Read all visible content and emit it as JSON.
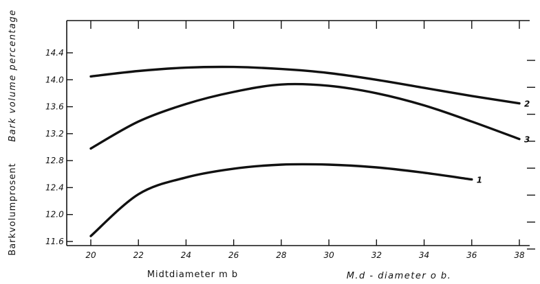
{
  "chart_data": {
    "type": "line",
    "xlabel": "Midtdiameter  m b",
    "xlabel_alt": "M.d - diameter   o b.",
    "ylabel": "Barkvolumprosent",
    "ylabel_alt": "Bark volume  percentage",
    "x_ticks": [
      "20",
      "22",
      "24",
      "26",
      "28",
      "30",
      "32",
      "34",
      "36",
      "38"
    ],
    "y_ticks": [
      "11.6",
      "12.0",
      "12.4",
      "12.8",
      "13.2",
      "13.6",
      "14.0",
      "14.4"
    ],
    "xlim": [
      20,
      38
    ],
    "ylim": [
      11.6,
      14.4
    ],
    "grid": false,
    "series": [
      {
        "name": "1",
        "x": [
          20,
          22,
          24,
          26,
          28,
          30,
          32,
          34,
          36
        ],
        "values": [
          11.68,
          12.3,
          12.55,
          12.68,
          12.74,
          12.74,
          12.7,
          12.62,
          12.52
        ]
      },
      {
        "name": "2",
        "x": [
          20,
          22,
          24,
          26,
          28,
          30,
          32,
          34,
          36,
          38
        ],
        "values": [
          14.05,
          14.13,
          14.18,
          14.19,
          14.16,
          14.1,
          14.0,
          13.88,
          13.76,
          13.65
        ]
      },
      {
        "name": "3",
        "x": [
          20,
          22,
          24,
          26,
          28,
          30,
          32,
          34,
          36,
          38
        ],
        "values": [
          12.98,
          13.38,
          13.64,
          13.82,
          13.93,
          13.91,
          13.8,
          13.62,
          13.38,
          13.12
        ]
      }
    ]
  }
}
